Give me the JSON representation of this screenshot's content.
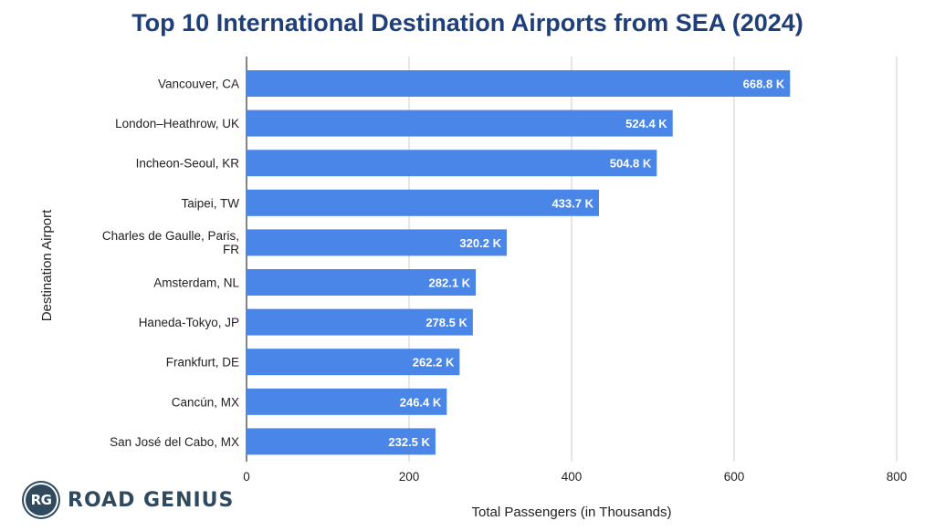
{
  "chart_data": {
    "type": "bar",
    "orientation": "horizontal",
    "title": "Top 10 International Destination Airports from SEA (2024)",
    "xlabel": "Total Passengers (in Thousands)",
    "ylabel": "Destination Airport",
    "categories": [
      "Vancouver, CA",
      "London–Heathrow, UK",
      "Incheon-Seoul, KR",
      "Taipei, TW",
      "Charles de Gaulle, Paris, FR",
      "Amsterdam, NL",
      "Haneda-Tokyo, JP",
      "Frankfurt, DE",
      "Cancún, MX",
      "San José del Cabo, MX"
    ],
    "values": [
      668.8,
      524.4,
      504.8,
      433.7,
      320.2,
      282.1,
      278.5,
      262.2,
      246.4,
      232.5
    ],
    "data_labels": [
      "668.8 K",
      "524.4 K",
      "504.8 K",
      "433.7 K",
      "320.2 K",
      "282.1 K",
      "278.5 K",
      "262.2 K",
      "246.4 K",
      "232.5 K"
    ],
    "xlim": [
      0,
      800
    ],
    "xticks": [
      0,
      200,
      400,
      600,
      800
    ],
    "grid": "vertical",
    "bar_color": "#4a86e8"
  },
  "branding": {
    "logo_badge": "RG",
    "logo_text": "ROAD GENIUS"
  }
}
